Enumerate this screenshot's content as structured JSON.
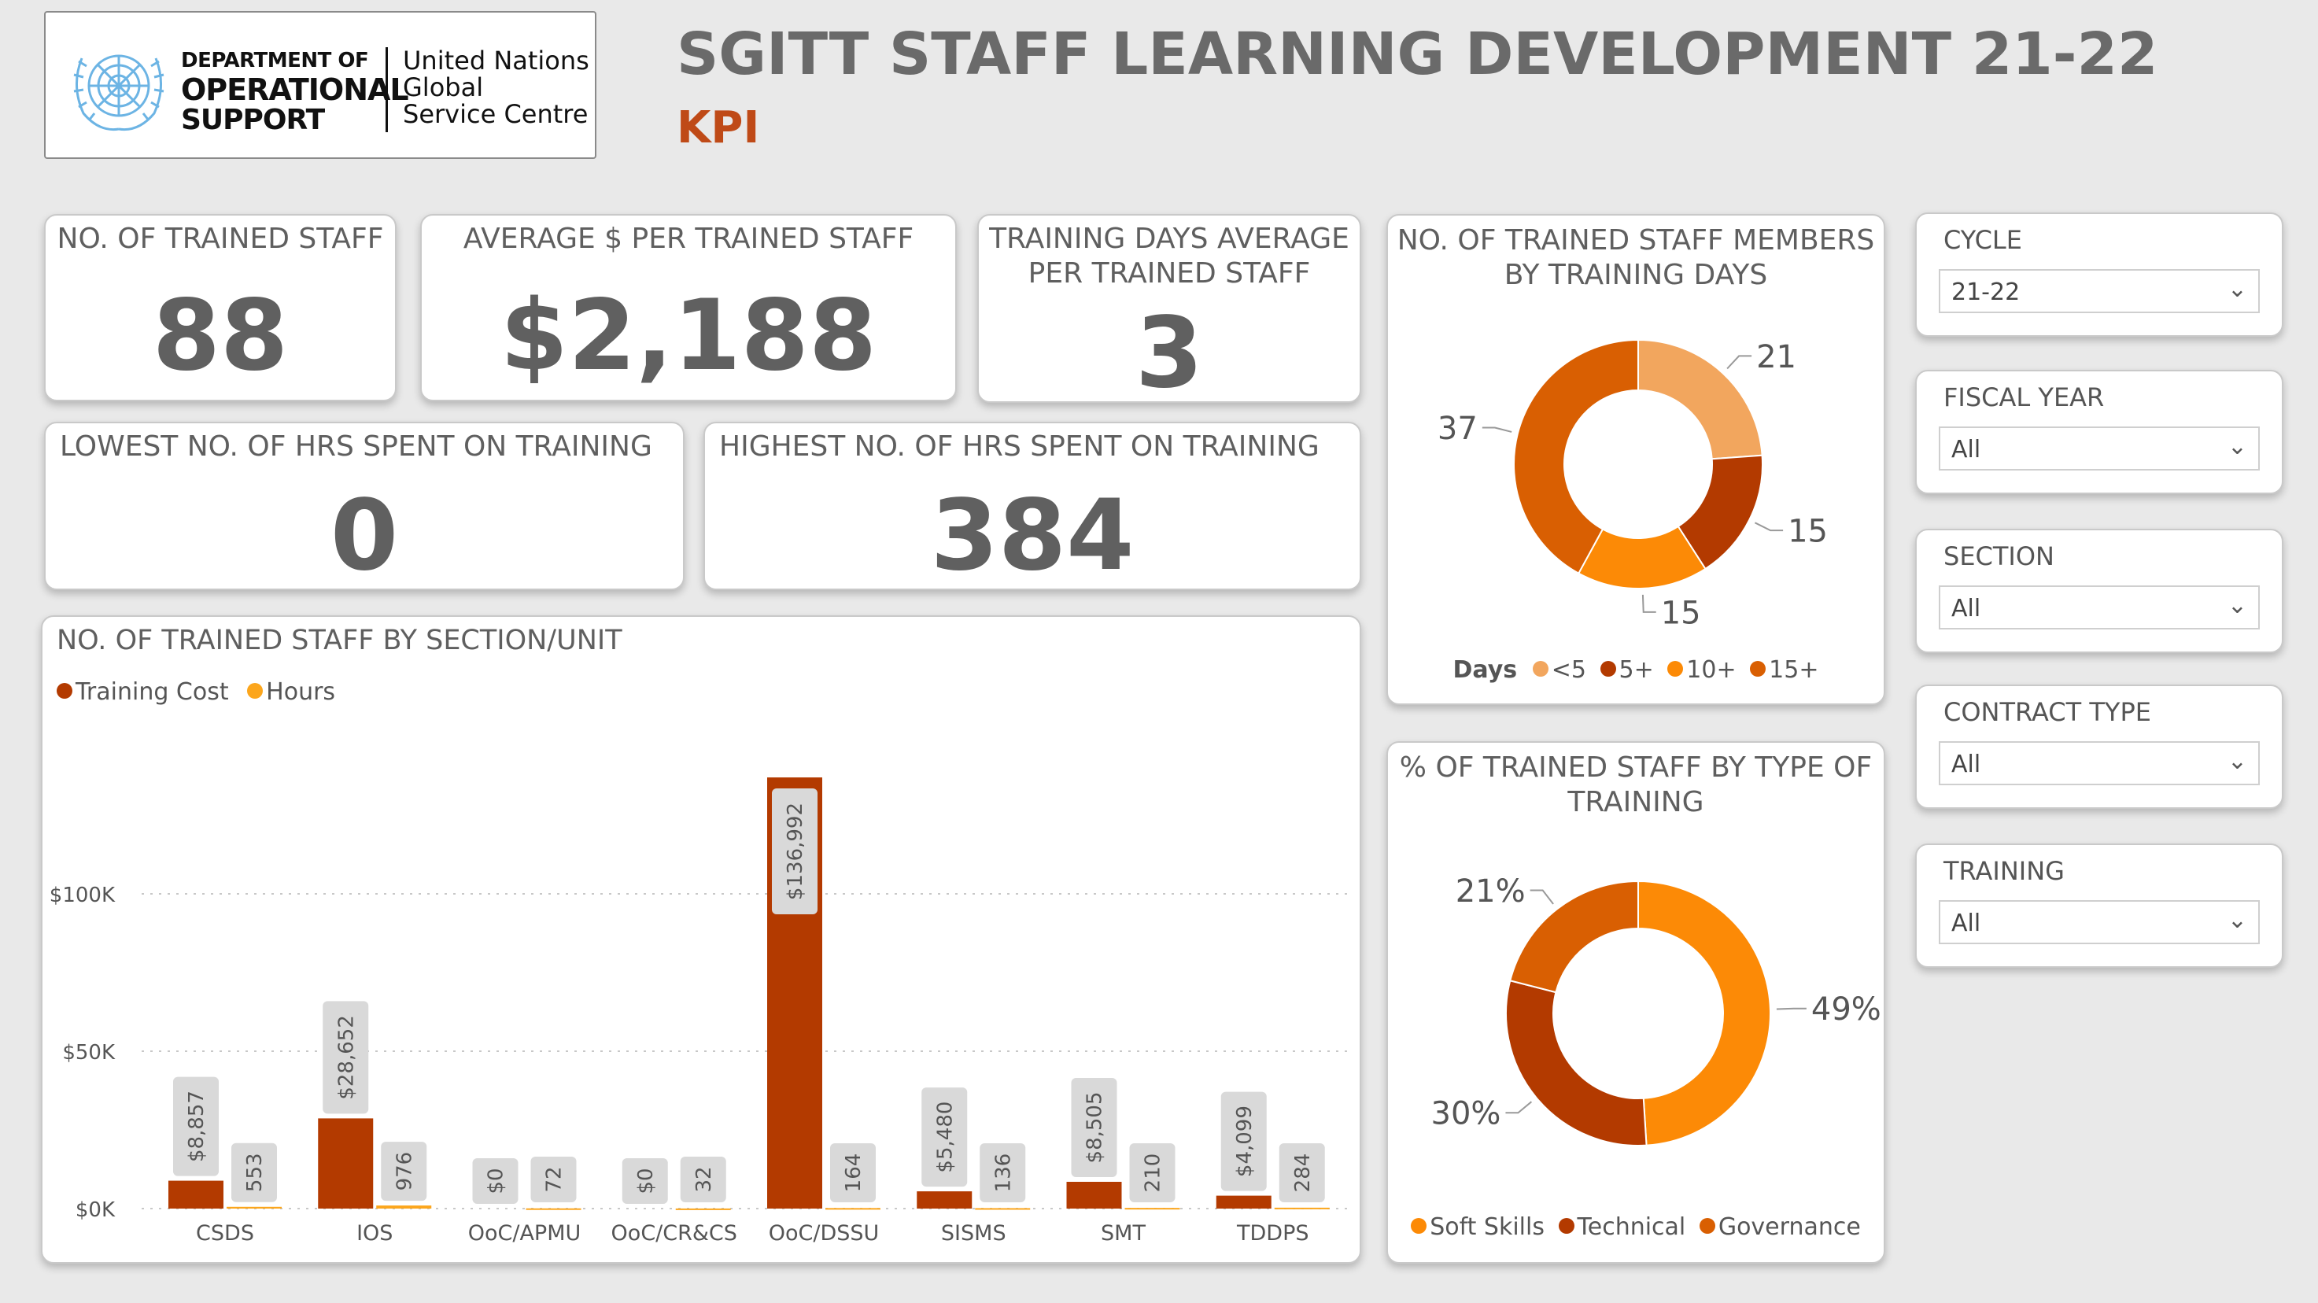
{
  "header": {
    "logo": {
      "line1": "DEPARTMENT OF",
      "line2": "OPERATIONAL",
      "line3": "SUPPORT",
      "right1": "United Nations",
      "right2": "Global",
      "right3": "Service Centre"
    },
    "title": "SGITT STAFF LEARNING DEVELOPMENT 21-22",
    "subtitle": "KPI"
  },
  "kpis": {
    "trained_staff": {
      "title": "NO. OF TRAINED STAFF",
      "value": "88"
    },
    "avg_cost": {
      "title": "AVERAGE $ PER TRAINED STAFF",
      "value": "$2,188"
    },
    "avg_days": {
      "title_line1": "TRAINING DAYS AVERAGE",
      "title_line2": "PER TRAINED STAFF",
      "value": "3"
    },
    "lowest_hours": {
      "title": "LOWEST NO. OF HRS SPENT ON TRAINING",
      "value": "0"
    },
    "highest_hours": {
      "title": "HIGHEST NO. OF HRS SPENT ON TRAINING",
      "value": "384"
    }
  },
  "filters": [
    {
      "title": "CYCLE",
      "value": "21-22"
    },
    {
      "title": "FISCAL YEAR",
      "value": "All"
    },
    {
      "title": "SECTION",
      "value": "All"
    },
    {
      "title": "CONTRACT TYPE",
      "value": "All"
    },
    {
      "title": "TRAINING",
      "value": "All"
    }
  ],
  "colors": {
    "training_cost": "#b33a00",
    "hours": "#fca61c",
    "lt5": "#f2a65e",
    "5plus": "#b33a00",
    "10plus": "#fc8a06",
    "15plus": "#d95f02",
    "soft_skills": "#fc8a06",
    "technical": "#b33a00",
    "governance": "#d95f02"
  },
  "chart_data": [
    {
      "type": "bar",
      "title": "NO. OF TRAINED STAFF BY SECTION/UNIT",
      "categories": [
        "CSDS",
        "IOS",
        "OoC/APMU",
        "OoC/CR&CS",
        "OoC/DSSU",
        "SISMS",
        "SMT",
        "TDDPS"
      ],
      "series": [
        {
          "name": "Training Cost",
          "values": [
            8857,
            28652,
            0,
            0,
            136992,
            5480,
            8505,
            4099
          ],
          "labels": [
            "$8,857",
            "$28,652",
            "$0",
            "$0",
            "$136,992",
            "$5,480",
            "$8,505",
            "$4,099"
          ]
        },
        {
          "name": "Hours",
          "values": [
            553,
            976,
            72,
            32,
            164,
            136,
            210,
            284
          ],
          "labels": [
            "553",
            "976",
            "72",
            "32",
            "164",
            "136",
            "210",
            "284"
          ]
        }
      ],
      "y_ticks": [
        "$0K",
        "$50K",
        "$100K"
      ],
      "ylim": [
        0,
        140000
      ],
      "grid": true,
      "legend": "top-left"
    },
    {
      "type": "pie",
      "title_line1": "NO. OF TRAINED STAFF MEMBERS",
      "title_line2": "BY TRAINING DAYS",
      "legend_title": "Days",
      "labels": [
        "<5",
        "5+",
        "10+",
        "15+"
      ],
      "values": [
        21,
        15,
        15,
        37
      ],
      "value_labels": [
        "21",
        "15",
        "15",
        "37"
      ],
      "legend": "bottom"
    },
    {
      "type": "pie",
      "title_line1": "% OF TRAINED STAFF BY TYPE OF",
      "title_line2": "TRAINING",
      "labels": [
        "Soft Skills",
        "Technical",
        "Governance"
      ],
      "values": [
        49,
        30,
        21
      ],
      "value_labels": [
        "49%",
        "30%",
        "21%"
      ],
      "legend": "bottom"
    }
  ]
}
